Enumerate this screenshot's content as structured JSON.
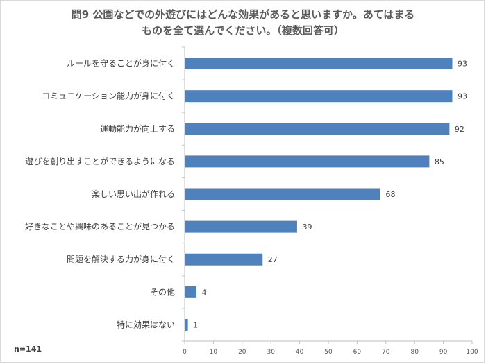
{
  "chart_data": {
    "type": "bar",
    "orientation": "horizontal",
    "title_lines": [
      "問9 公園などでの外遊びにはどんな効果があると思いますか。あてはまる",
      "ものを全て選んでください。（複数回答可）"
    ],
    "note": "n=141",
    "categories": [
      "ルールを守ることが身に付く",
      "コミュニケーション能力が身に付く",
      "運動能力が向上する",
      "遊びを創り出すことができるようになる",
      "楽しい思い出が作れる",
      "好きなことや興味のあることが見つかる",
      "問題を解決する力が身に付く",
      "その他",
      "特に効果はない"
    ],
    "values": [
      93,
      93,
      92,
      85,
      68,
      39,
      27,
      4,
      1
    ],
    "xlim": [
      0,
      100
    ],
    "xticks": [
      0,
      10,
      20,
      30,
      40,
      50,
      60,
      70,
      80,
      90,
      100
    ],
    "bar_color": "#4f81bd",
    "axis_color": "#bfbfbf",
    "grid": false,
    "legend": "none"
  }
}
